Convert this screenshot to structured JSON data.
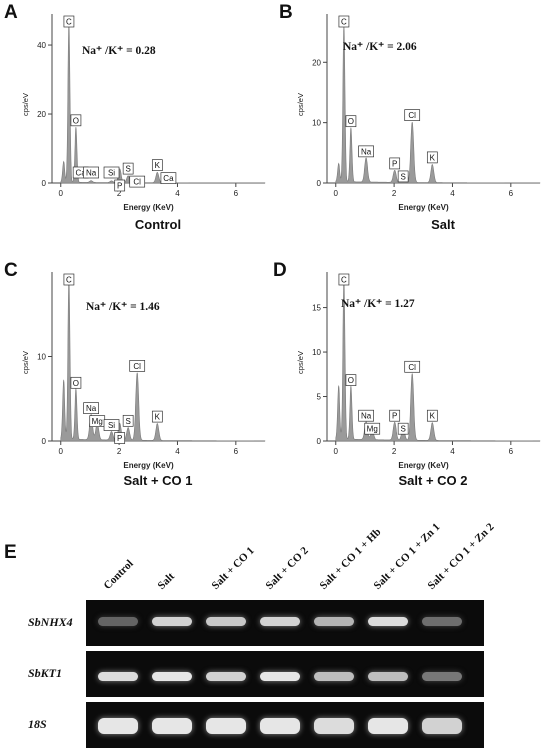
{
  "figure": {
    "panels": [
      {
        "letter": "A",
        "caption": "Control",
        "ratio_label": "Na⁺ /K⁺",
        "ratio_value": "= 0.28"
      },
      {
        "letter": "B",
        "caption": "Salt",
        "ratio_label": "Na⁺ /K⁺",
        "ratio_value": "= 2.06"
      },
      {
        "letter": "C",
        "caption": "Salt + CO 1",
        "ratio_label": "Na⁺ /K⁺",
        "ratio_value": "= 1.46"
      },
      {
        "letter": "D",
        "caption": "Salt  + CO 2",
        "ratio_label": "Na⁺ /K⁺",
        "ratio_value": "= 1.27"
      }
    ],
    "gel": {
      "letter": "E",
      "lanes": [
        "Control",
        "Salt",
        "Salt + CO 1",
        "Salt + CO 2",
        "Salt + CO 1 + Hb",
        "Salt + CO 1 + Zn 1",
        "Salt + CO 1 + Zn 2"
      ],
      "genes": [
        "SbNHX4",
        "SbKT1",
        "18S"
      ],
      "band_intensity": [
        [
          0.3,
          0.85,
          0.8,
          0.85,
          0.7,
          0.9,
          0.35
        ],
        [
          0.9,
          0.95,
          0.85,
          0.95,
          0.75,
          0.75,
          0.4
        ],
        [
          0.95,
          0.95,
          0.95,
          0.95,
          0.9,
          0.95,
          0.85
        ]
      ]
    }
  },
  "chart_data": [
    {
      "type": "line",
      "title": "",
      "xlabel": "Energy (KeV)",
      "ylabel": "cps/eV",
      "xlim": [
        -0.3,
        7
      ],
      "ylim": [
        0,
        49
      ],
      "xticks": [
        0,
        2,
        4,
        6
      ],
      "yticks": [
        0,
        20,
        40
      ],
      "series": [
        {
          "values": [
            [
              0.1,
              6
            ],
            [
              0.28,
              46
            ],
            [
              0.52,
              16
            ],
            [
              1.04,
              0.5
            ],
            [
              1.74,
              0.5
            ],
            [
              2.02,
              4
            ],
            [
              2.31,
              2
            ],
            [
              2.62,
              1
            ],
            [
              3.31,
              3
            ],
            [
              3.69,
              1
            ]
          ]
        }
      ],
      "peaks": [
        {
          "label": "C",
          "x": 0.28
        },
        {
          "label": "O",
          "x": 0.52
        },
        {
          "label": "Ca",
          "x": 0.34
        },
        {
          "label": "Na",
          "x": 1.04
        },
        {
          "label": "Si",
          "x": 1.74
        },
        {
          "label": "P",
          "x": 2.02
        },
        {
          "label": "S",
          "x": 2.31
        },
        {
          "label": "Cl",
          "x": 2.62
        },
        {
          "label": "K",
          "x": 3.31
        },
        {
          "label": "Ca",
          "x": 3.69
        }
      ]
    },
    {
      "type": "line",
      "title": "",
      "xlabel": "Energy (KeV)",
      "ylabel": "cps/eV",
      "xlim": [
        -0.3,
        7
      ],
      "ylim": [
        0,
        28
      ],
      "xticks": [
        0,
        2,
        4,
        6
      ],
      "yticks": [
        0,
        10,
        20
      ],
      "series": [
        {
          "values": [
            [
              0.1,
              3
            ],
            [
              0.28,
              26
            ],
            [
              0.52,
              9
            ],
            [
              1.04,
              4
            ],
            [
              2.02,
              2
            ],
            [
              2.31,
              1
            ],
            [
              2.62,
              10
            ],
            [
              3.31,
              3
            ]
          ]
        }
      ],
      "peaks": [
        {
          "label": "C",
          "x": 0.28
        },
        {
          "label": "O",
          "x": 0.52
        },
        {
          "label": "Na",
          "x": 1.04
        },
        {
          "label": "P",
          "x": 2.02
        },
        {
          "label": "S",
          "x": 2.31
        },
        {
          "label": "Cl",
          "x": 2.62
        },
        {
          "label": "K",
          "x": 3.31
        }
      ]
    },
    {
      "type": "line",
      "title": "",
      "xlabel": "Energy (KeV)",
      "ylabel": "cps/eV",
      "xlim": [
        -0.3,
        7
      ],
      "ylim": [
        0,
        20
      ],
      "xticks": [
        0,
        2,
        4,
        6
      ],
      "yticks": [
        0,
        10
      ],
      "series": [
        {
          "values": [
            [
              0.1,
              7
            ],
            [
              0.28,
              19
            ],
            [
              0.52,
              6
            ],
            [
              1.04,
              3
            ],
            [
              1.25,
              2
            ],
            [
              1.74,
              1
            ],
            [
              2.02,
              2
            ],
            [
              2.31,
              1.5
            ],
            [
              2.62,
              8
            ],
            [
              3.31,
              2
            ]
          ]
        }
      ],
      "peaks": [
        {
          "label": "C",
          "x": 0.28
        },
        {
          "label": "O",
          "x": 0.52
        },
        {
          "label": "Na",
          "x": 1.04
        },
        {
          "label": "Mg",
          "x": 1.25
        },
        {
          "label": "Si",
          "x": 1.74
        },
        {
          "label": "P",
          "x": 2.02
        },
        {
          "label": "S",
          "x": 2.31
        },
        {
          "label": "Cl",
          "x": 2.62
        },
        {
          "label": "K",
          "x": 3.31
        }
      ]
    },
    {
      "type": "line",
      "title": "",
      "xlabel": "Energy (KeV)",
      "ylabel": "cps/eV",
      "xlim": [
        -0.3,
        7
      ],
      "ylim": [
        0,
        19
      ],
      "xticks": [
        0,
        2,
        4,
        6
      ],
      "yticks": [
        0,
        5,
        10,
        15
      ],
      "series": [
        {
          "values": [
            [
              0.1,
              6
            ],
            [
              0.28,
              18
            ],
            [
              0.52,
              6
            ],
            [
              1.04,
              2
            ],
            [
              1.25,
              1
            ],
            [
              2.02,
              2
            ],
            [
              2.31,
              1.5
            ],
            [
              2.62,
              7.5
            ],
            [
              3.31,
              2
            ]
          ]
        }
      ],
      "peaks": [
        {
          "label": "C",
          "x": 0.28
        },
        {
          "label": "O",
          "x": 0.52
        },
        {
          "label": "Na",
          "x": 1.04
        },
        {
          "label": "Mg",
          "x": 1.25
        },
        {
          "label": "P",
          "x": 2.02
        },
        {
          "label": "S",
          "x": 2.31
        },
        {
          "label": "Cl",
          "x": 2.62
        },
        {
          "label": "K",
          "x": 3.31
        }
      ]
    }
  ]
}
